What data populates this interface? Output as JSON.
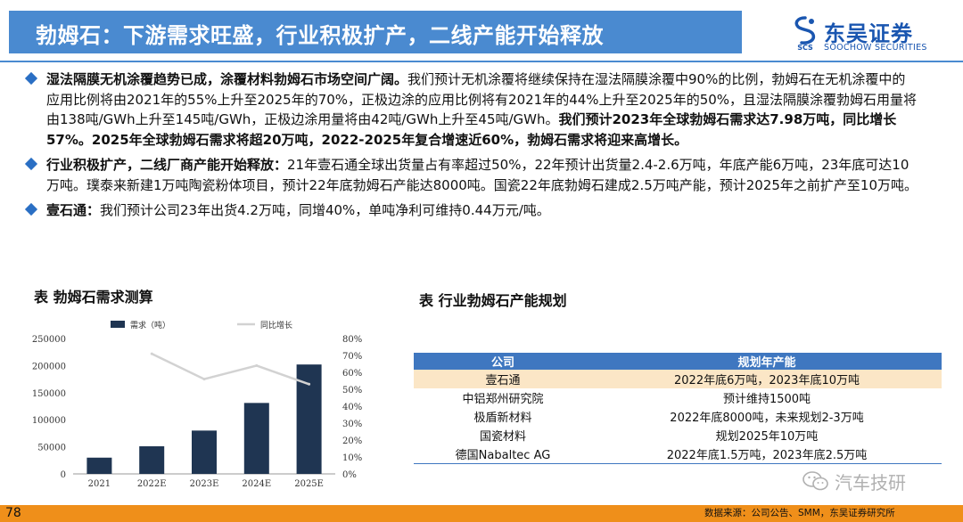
{
  "header": {
    "title": "勃姆石：下游需求旺盛，行业积极扩产，二线产能开始释放",
    "brand_name": "东吴证券",
    "brand_sub": "SOOCHOW SECURITIES",
    "brand_mark": "SCS",
    "accent_color": "#4a8ad0",
    "brand_color": "#1a56b0"
  },
  "bullets": [
    {
      "lead": "湿法隔膜无机涂覆趋势已成，涂覆材料勃姆石市场空间广阔。",
      "body": "我们预计无机涂覆将继续保持在湿法隔膜涂覆中90%的比例，勃姆石在无机涂覆中的应用比例将由2021年的55%上升至2025年的70%，正极边涂的应用比例将有2021年的44%上升至2025年的50%，且湿法隔膜涂覆勃姆石用量将由138吨/GWh上升至145吨/GWh，正极边涂用量将由42吨/GWh上升至45吨/GWh。",
      "tail": "我们预计2023年全球勃姆石需求达7.98万吨，同比增长57%。2025年全球勃姆石需求将超20万吨，2022-2025年复合增速近60%，勃姆石需求将迎来高增长。"
    },
    {
      "lead": "行业积极扩产，二线厂商产能开始释放：",
      "body": "21年壹石通全球出货量占有率超过50%，22年预计出货量2.4-2.6万吨，年底产能6万吨，23年底可达10万吨。璞泰来新建1万吨陶瓷粉体项目，预计22年底勃姆石产能达8000吨。国瓷22年底勃姆石建成2.5万吨产能，预计2025年之前扩产至10万吨。",
      "tail": ""
    },
    {
      "lead": "壹石通：",
      "body": "我们预计公司23年出货4.2万吨，同增40%，单吨净利可维持0.44万元/吨。",
      "tail": ""
    }
  ],
  "chart_section": {
    "title": "表 勃姆石需求测算"
  },
  "table_section": {
    "title": "表 行业勃姆石产能规划"
  },
  "chart_data": {
    "type": "bar",
    "categories": [
      "2021",
      "2022E",
      "2023E",
      "2024E",
      "2025E"
    ],
    "series": [
      {
        "name": "需求（吨）",
        "kind": "bar",
        "axis": "left",
        "color": "#1f3552",
        "values": [
          30000,
          51000,
          80000,
          131000,
          202000
        ]
      },
      {
        "name": "同比增长",
        "kind": "line",
        "axis": "right",
        "color": "#d2d2d2",
        "values": [
          null,
          0.71,
          0.56,
          0.64,
          0.53
        ]
      }
    ],
    "y_left": {
      "min": 0,
      "max": 250000,
      "ticks": [
        "0",
        "50000",
        "100000",
        "150000",
        "200000",
        "250000"
      ]
    },
    "y_right": {
      "min": 0,
      "max": 0.8,
      "ticks": [
        "0%",
        "10%",
        "20%",
        "30%",
        "40%",
        "50%",
        "60%",
        "70%",
        "80%"
      ]
    },
    "legend_position": "top",
    "grid": false
  },
  "capacity_table": {
    "headers": [
      "公司",
      "规划年产能"
    ],
    "rows": [
      {
        "company": "壹石通",
        "plan": "2022年底6万吨，2023年底10万吨",
        "highlight": true
      },
      {
        "company": "中铝郑州研究院",
        "plan": "预计维持1500吨",
        "highlight": false
      },
      {
        "company": "极盾新材料",
        "plan": "2022年底8000吨，未来规划2-3万吨",
        "highlight": false
      },
      {
        "company": "国瓷材料",
        "plan": "规划2025年10万吨",
        "highlight": false
      },
      {
        "company": "德国Nabaltec AG",
        "plan": "2022年底1.5万吨，2023年底2.5万吨",
        "highlight": false
      }
    ],
    "header_color": "#3f77c0",
    "highlight_color": "#fbe6c6"
  },
  "footer": {
    "page_number": "78",
    "source": "数据来源：公司公告、SMM，东吴证券研究所",
    "bar_color": "#ef8f1a"
  },
  "watermark": {
    "text": "汽车技研",
    "icon": "wechat-icon"
  }
}
